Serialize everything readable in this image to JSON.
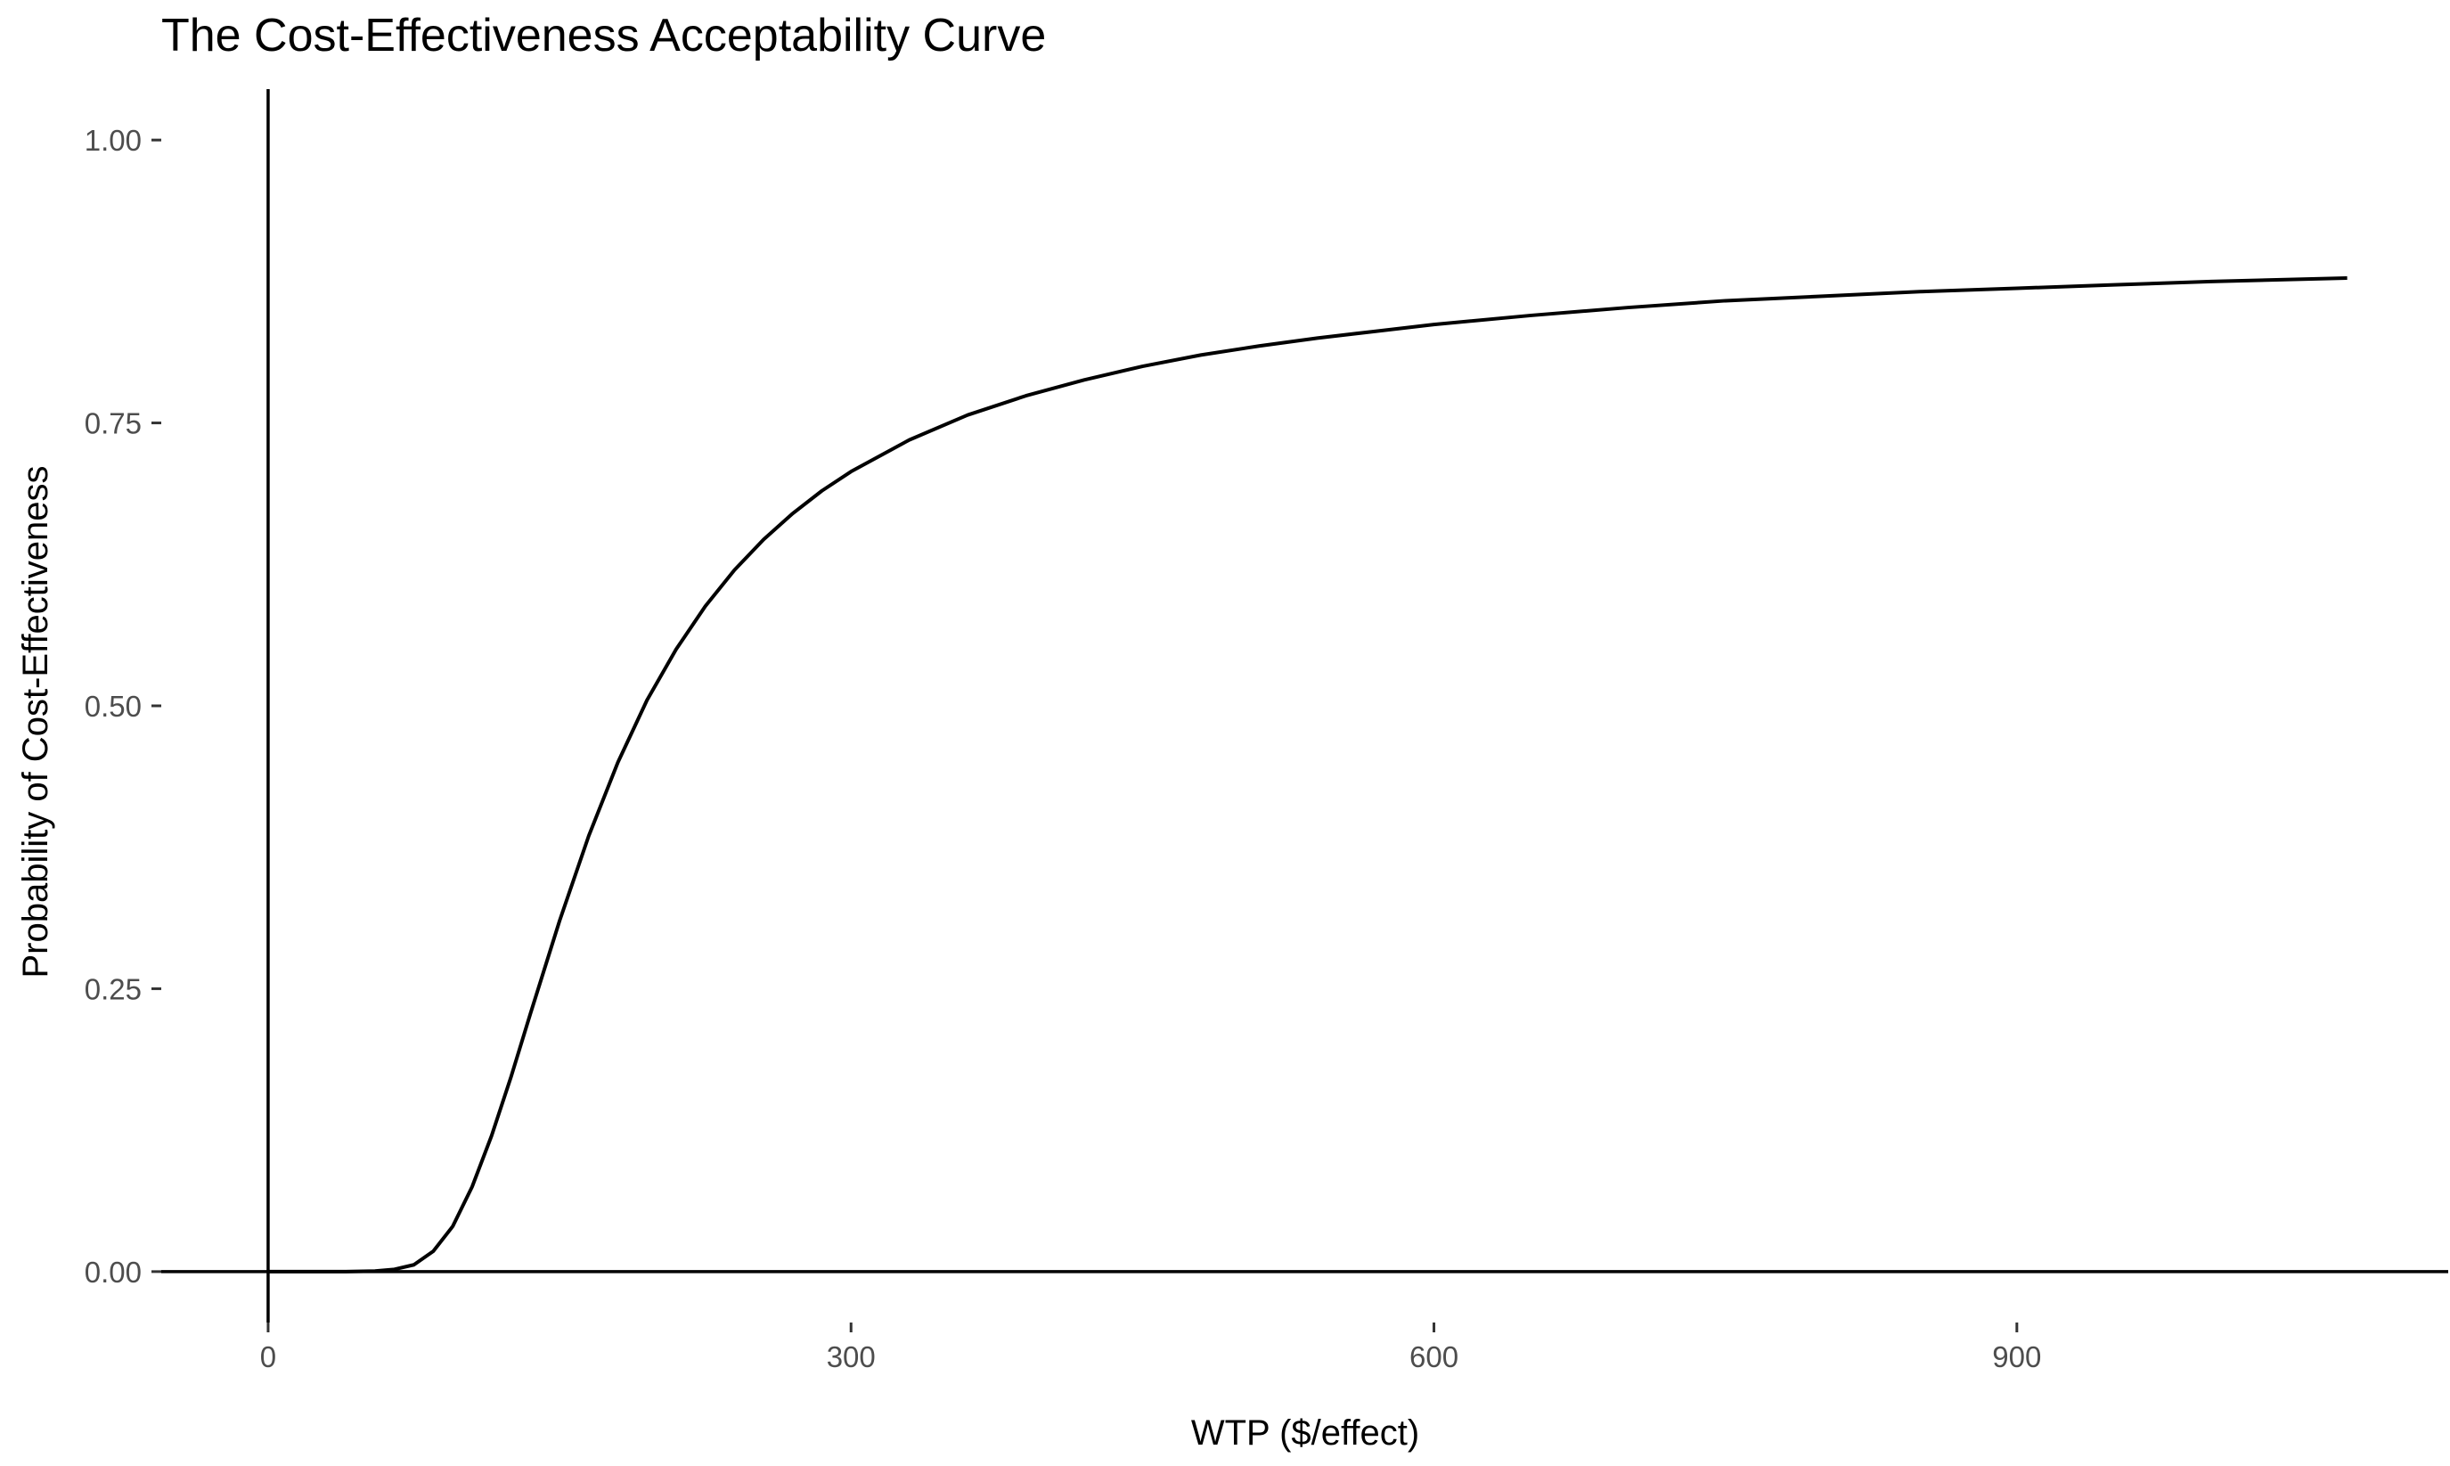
{
  "chart_data": {
    "type": "line",
    "title": "The Cost-Effectiveness Acceptability Curve",
    "xlabel": "WTP ($/effect)",
    "ylabel": "Probability of Cost-Effectiveness",
    "xlim": [
      -55,
      1122
    ],
    "ylim": [
      -0.045,
      1.045
    ],
    "x_ticks": [
      0,
      300,
      600,
      900
    ],
    "x_tick_labels": [
      "0",
      "300",
      "600",
      "900"
    ],
    "y_ticks": [
      0,
      0.25,
      0.5,
      0.75,
      1
    ],
    "y_tick_labels": [
      "0.00",
      "0.25",
      "0.50",
      "0.75",
      "1.00"
    ],
    "grid": false,
    "legend": "none",
    "line_color": "#000000",
    "reference_lines": {
      "x": 0,
      "y": 0
    },
    "series": [
      {
        "x": [
          0,
          20,
          40,
          55,
          65,
          75,
          85,
          95,
          105,
          115,
          125,
          135,
          150,
          165,
          180,
          195,
          210,
          225,
          240,
          255,
          270,
          285,
          300,
          330,
          360,
          390,
          420,
          450,
          480,
          510,
          540,
          570,
          600,
          650,
          700,
          750,
          800,
          850,
          900,
          950,
          1000,
          1070
        ],
        "y": [
          0,
          0,
          0,
          0.0005,
          0.002,
          0.006,
          0.018,
          0.04,
          0.075,
          0.12,
          0.172,
          0.228,
          0.31,
          0.385,
          0.45,
          0.505,
          0.55,
          0.588,
          0.62,
          0.647,
          0.67,
          0.69,
          0.707,
          0.735,
          0.757,
          0.774,
          0.788,
          0.8,
          0.81,
          0.818,
          0.825,
          0.831,
          0.837,
          0.845,
          0.852,
          0.858,
          0.862,
          0.866,
          0.869,
          0.872,
          0.875,
          0.878
        ]
      }
    ]
  }
}
